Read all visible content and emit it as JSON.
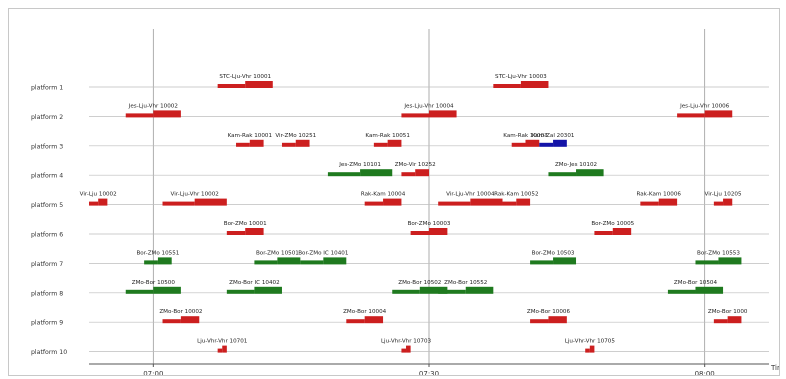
{
  "chart_data": {
    "type": "gantt",
    "title": "",
    "xlabel": "Time",
    "ylabel": "",
    "x_ticks": [
      "07:00",
      "07:30",
      "08:00"
    ],
    "xlim": [
      "06:53",
      "08:07"
    ],
    "grid": {
      "horizontal": true,
      "vertical": true
    },
    "colors": {
      "red": "#cc1f1f",
      "green": "#1f7a1f",
      "blue": "#1414a8"
    },
    "platforms": [
      "platform 1",
      "platform 2",
      "platform 3",
      "platform 4",
      "platform 5",
      "platform 6",
      "platform 7",
      "platform 8",
      "platform 9",
      "platform 10"
    ],
    "trains": [
      {
        "platform": 1,
        "label": "STC-Lju-Vhr 10001",
        "start": "07:07",
        "end": "07:13",
        "color": "red"
      },
      {
        "platform": 1,
        "label": "STC-Lju-Vhr 10003",
        "start": "07:37",
        "end": "07:43",
        "color": "red"
      },
      {
        "platform": 2,
        "label": "Jes-Lju-Vhr 10002",
        "start": "06:57",
        "end": "07:03",
        "color": "red"
      },
      {
        "platform": 2,
        "label": "Jes-Lju-Vhr 10004",
        "start": "07:27",
        "end": "07:33",
        "color": "red"
      },
      {
        "platform": 2,
        "label": "Jes-Lju-Vhr 10006",
        "start": "07:57",
        "end": "08:03",
        "color": "red"
      },
      {
        "platform": 3,
        "label": "Kam-Rak 10001",
        "start": "07:09",
        "end": "07:12",
        "color": "red"
      },
      {
        "platform": 3,
        "label": "Vir-ZMo 10251",
        "start": "07:14",
        "end": "07:17",
        "color": "red"
      },
      {
        "platform": 3,
        "label": "Kam-Rak 10051",
        "start": "07:24",
        "end": "07:27",
        "color": "red"
      },
      {
        "platform": 3,
        "label": "Kam-Rak 10003",
        "start": "07:39",
        "end": "07:42",
        "color": "red"
      },
      {
        "platform": 3,
        "label": "Kam-Zal 20301",
        "start": "07:42",
        "end": "07:45",
        "color": "blue"
      },
      {
        "platform": 4,
        "label": "Jes-ZMo 10101",
        "start": "07:19",
        "end": "07:26",
        "color": "green"
      },
      {
        "platform": 4,
        "label": "ZMo-Vir 10252",
        "start": "07:27",
        "end": "07:30",
        "color": "red"
      },
      {
        "platform": 4,
        "label": "ZMo-Jes 10102",
        "start": "07:43",
        "end": "07:49",
        "color": "green"
      },
      {
        "platform": 5,
        "label": "Vir-Lju 10002",
        "start": "06:53",
        "end": "06:55",
        "color": "red"
      },
      {
        "platform": 5,
        "label": "Vir-Lju-Vhr 10002",
        "start": "07:01",
        "end": "07:08",
        "color": "red"
      },
      {
        "platform": 5,
        "label": "Rak-Kam 10004",
        "start": "07:23",
        "end": "07:27",
        "color": "red"
      },
      {
        "platform": 5,
        "label": "Vir-Lju-Vhr 10004",
        "start": "07:31",
        "end": "07:38",
        "color": "red"
      },
      {
        "platform": 5,
        "label": "Rak-Kam 10052",
        "start": "07:38",
        "end": "07:41",
        "color": "red"
      },
      {
        "platform": 5,
        "label": "Rak-Kam 10006",
        "start": "07:53",
        "end": "07:57",
        "color": "red"
      },
      {
        "platform": 5,
        "label": "Vir-Lju 10205",
        "start": "08:01",
        "end": "08:03",
        "color": "red"
      },
      {
        "platform": 6,
        "label": "Bor-ZMo 10001",
        "start": "07:08",
        "end": "07:12",
        "color": "red"
      },
      {
        "platform": 6,
        "label": "Bor-ZMo 10003",
        "start": "07:28",
        "end": "07:32",
        "color": "red"
      },
      {
        "platform": 6,
        "label": "Bor-ZMo 10005",
        "start": "07:48",
        "end": "07:52",
        "color": "red"
      },
      {
        "platform": 7,
        "label": "Bor-ZMo 10551",
        "start": "06:59",
        "end": "07:02",
        "color": "green"
      },
      {
        "platform": 7,
        "label": "Bor-ZMo 10501",
        "start": "07:11",
        "end": "07:16",
        "color": "green"
      },
      {
        "platform": 7,
        "label": "Bor-ZMo IC 10401",
        "start": "07:16",
        "end": "07:21",
        "color": "green"
      },
      {
        "platform": 7,
        "label": "Bor-ZMo 10503",
        "start": "07:41",
        "end": "07:46",
        "color": "green"
      },
      {
        "platform": 7,
        "label": "Bor-ZMo 10553",
        "start": "07:59",
        "end": "08:04",
        "color": "green"
      },
      {
        "platform": 8,
        "label": "ZMo-Bor 10500",
        "start": "06:57",
        "end": "07:03",
        "color": "green"
      },
      {
        "platform": 8,
        "label": "ZMo-Bor IC 10402",
        "start": "07:08",
        "end": "07:14",
        "color": "green"
      },
      {
        "platform": 8,
        "label": "ZMo-Bor 10502",
        "start": "07:26",
        "end": "07:32",
        "color": "green"
      },
      {
        "platform": 8,
        "label": "ZMo-Bor 10552",
        "start": "07:31",
        "end": "07:37",
        "color": "green"
      },
      {
        "platform": 8,
        "label": "ZMo-Bor 10504",
        "start": "07:56",
        "end": "08:02",
        "color": "green"
      },
      {
        "platform": 9,
        "label": "ZMo-Bor 10002",
        "start": "07:01",
        "end": "07:05",
        "color": "red"
      },
      {
        "platform": 9,
        "label": "ZMo-Bor 10004",
        "start": "07:21",
        "end": "07:25",
        "color": "red"
      },
      {
        "platform": 9,
        "label": "ZMo-Bor 10006",
        "start": "07:41",
        "end": "07:45",
        "color": "red"
      },
      {
        "platform": 9,
        "label": "ZMo-Bor 1000",
        "start": "08:01",
        "end": "08:04",
        "color": "red"
      },
      {
        "platform": 10,
        "label": "Lju-Vhr-Vhr 10701",
        "start": "07:07",
        "end": "07:08",
        "color": "red"
      },
      {
        "platform": 10,
        "label": "Lju-Vhr-Vhr 10703",
        "start": "07:27",
        "end": "07:28",
        "color": "red"
      },
      {
        "platform": 10,
        "label": "Lju-Vhr-Vhr 10705",
        "start": "07:47",
        "end": "07:48",
        "color": "red"
      }
    ]
  }
}
